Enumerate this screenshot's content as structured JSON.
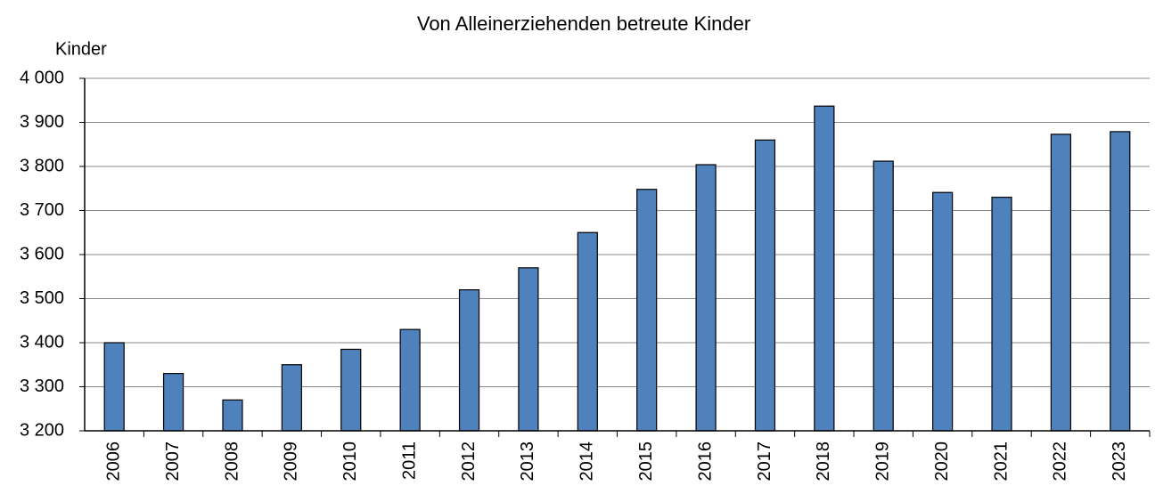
{
  "chart_data": {
    "type": "bar",
    "title": "Von Alleinerziehenden betreute Kinder",
    "y_label": "Kinder",
    "categories": [
      "2006",
      "2007",
      "2008",
      "2009",
      "2010",
      "2011",
      "2012",
      "2013",
      "2014",
      "2015",
      "2016",
      "2017",
      "2018",
      "2019",
      "2020",
      "2021",
      "2022",
      "2023"
    ],
    "values": [
      3400,
      3330,
      3270,
      3350,
      3385,
      3430,
      3520,
      3570,
      3650,
      3748,
      3804,
      3860,
      3937,
      3812,
      3741,
      3730,
      3873,
      3879
    ],
    "color": "#4f81bd",
    "ylim": [
      3200,
      4000
    ],
    "yticks": [
      {
        "value": 3200,
        "label": "3 200"
      },
      {
        "value": 3300,
        "label": "3 300"
      },
      {
        "value": 3400,
        "label": "3 400"
      },
      {
        "value": 3500,
        "label": "3 500"
      },
      {
        "value": 3600,
        "label": "3 600"
      },
      {
        "value": 3700,
        "label": "3 700"
      },
      {
        "value": 3800,
        "label": "3 800"
      },
      {
        "value": 3900,
        "label": "3 900"
      },
      {
        "value": 4000,
        "label": "4 000"
      }
    ],
    "grid": true
  }
}
